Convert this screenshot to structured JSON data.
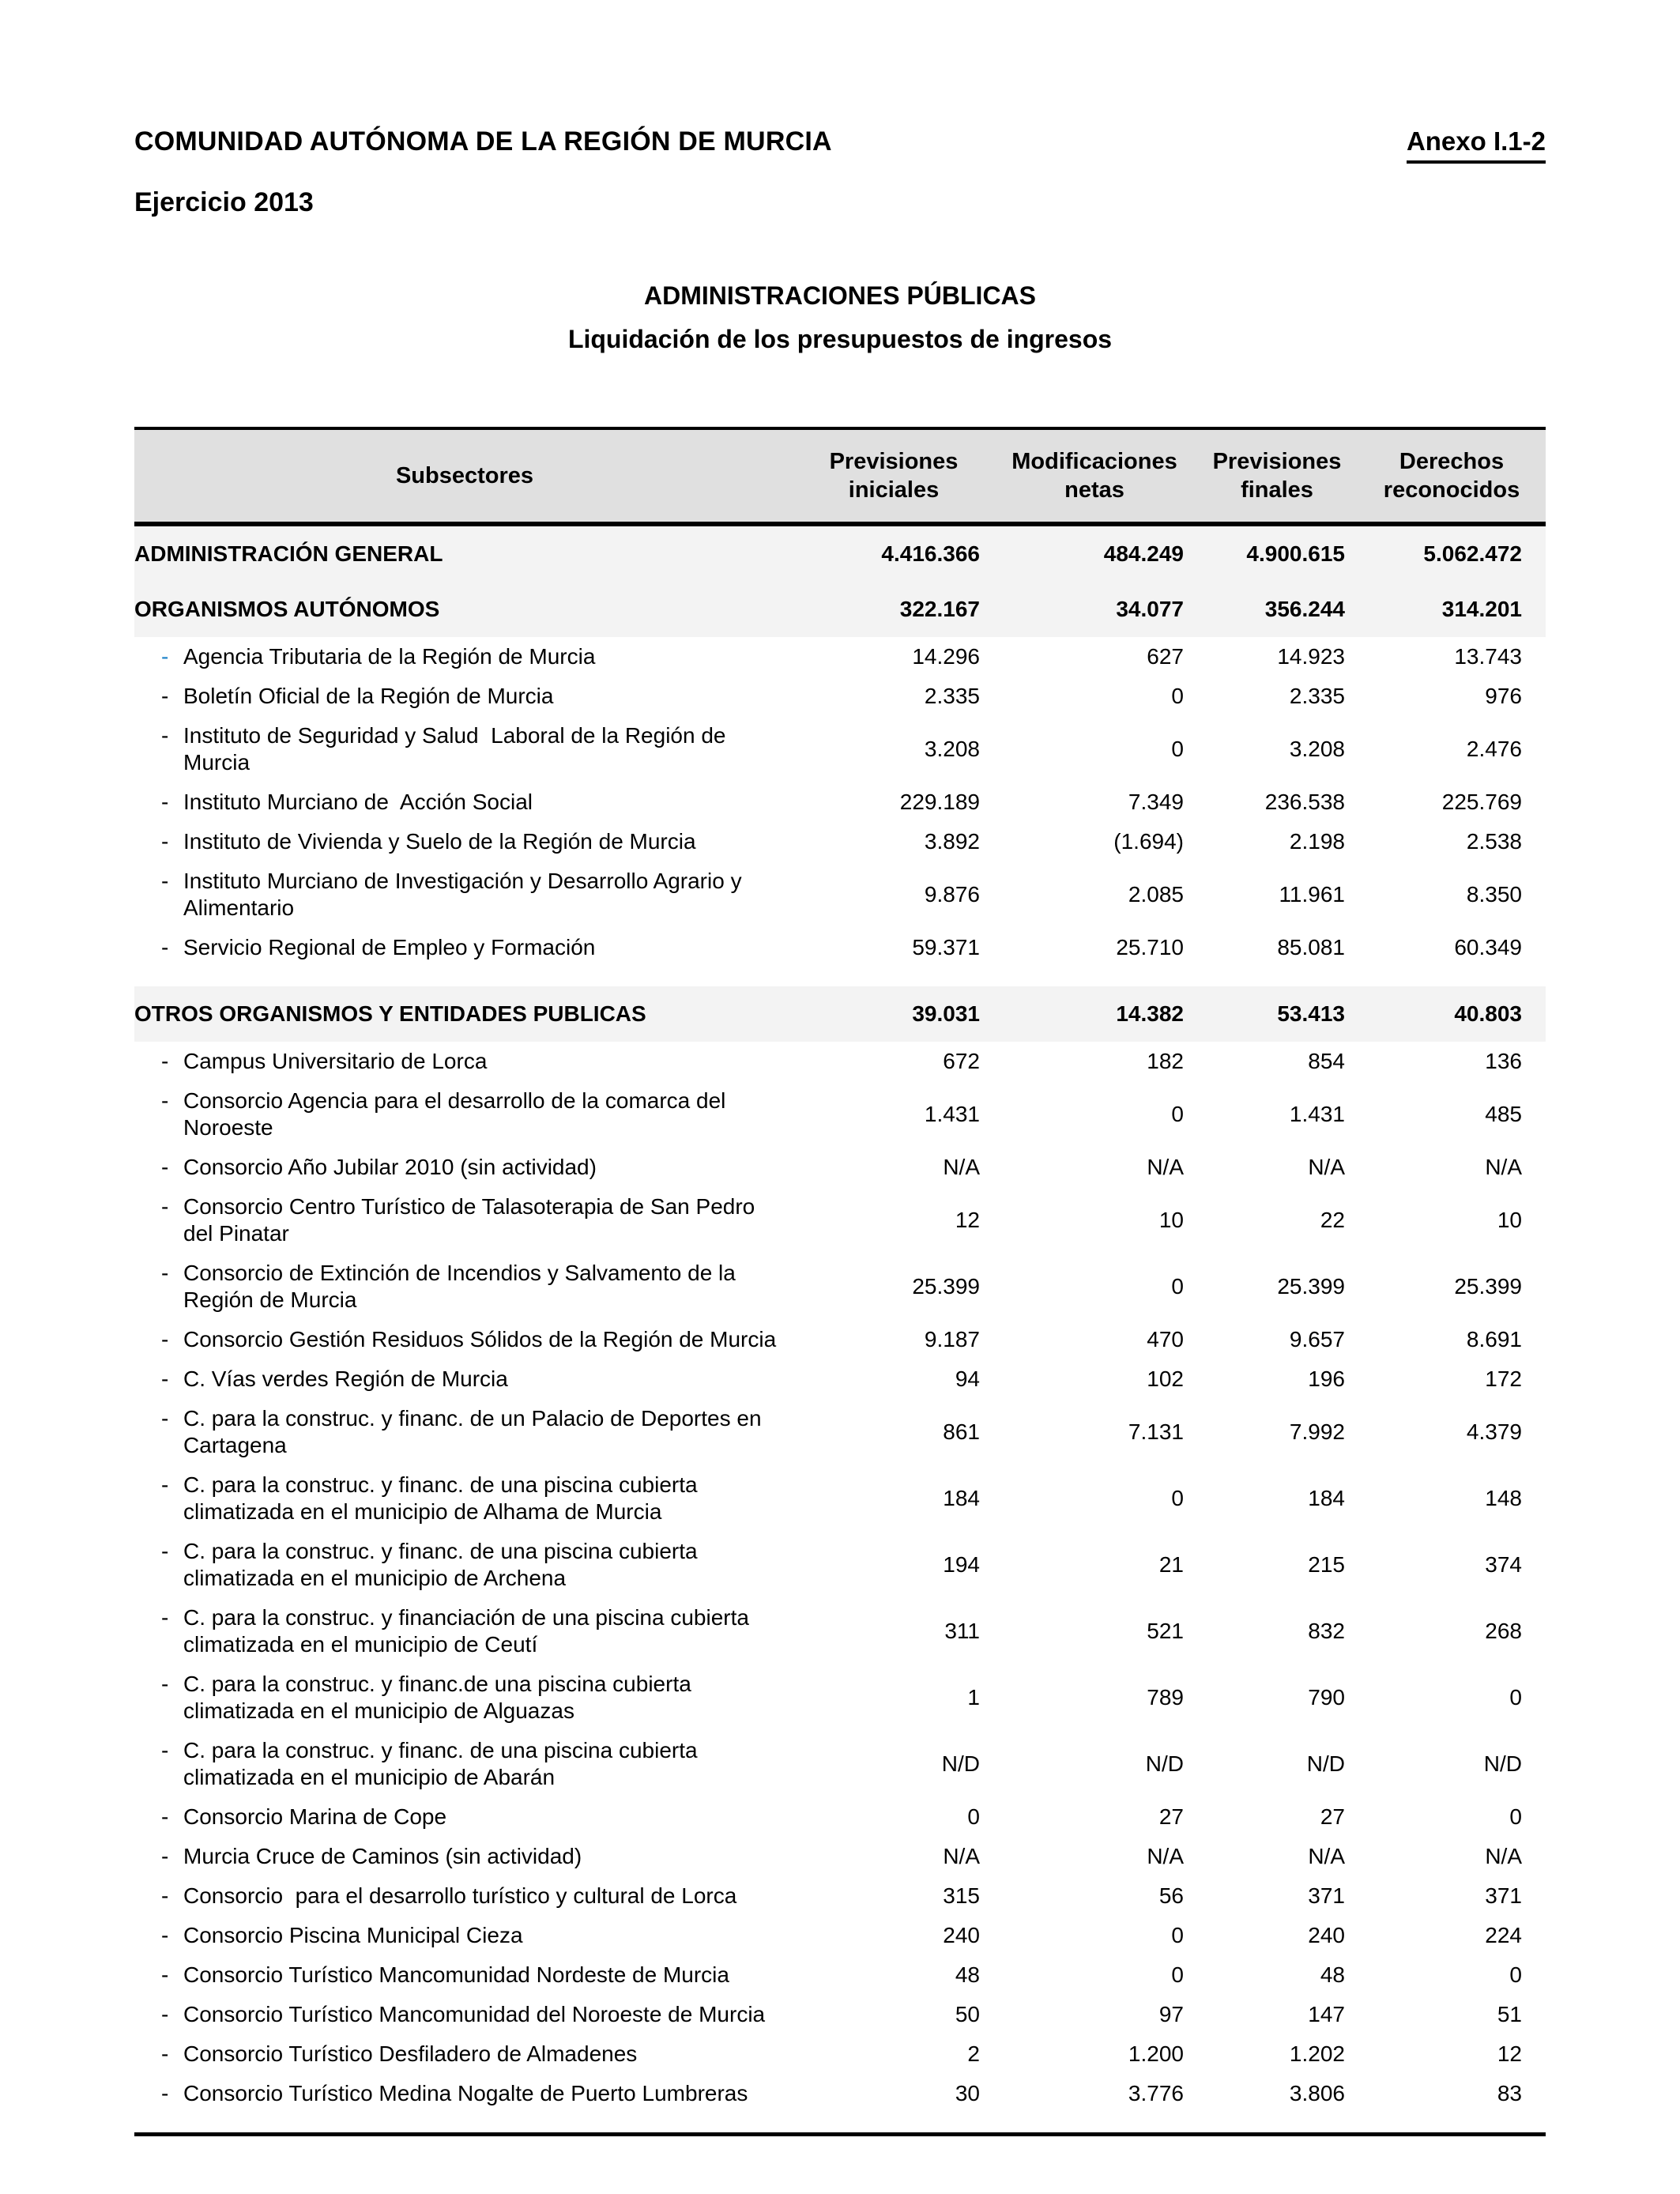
{
  "colors": {
    "header_bg": "#E0E0E0",
    "section_bg": "#F3F3F3",
    "accent_blue": "#1E82C8",
    "border_black": "#000000"
  },
  "header": {
    "org": "COMUNIDAD AUTÓNOMA DE LA REGIÓN DE MURCIA",
    "annex": "Anexo I.1-2",
    "exercise": "Ejercicio 2013",
    "title": "ADMINISTRACIONES PÚBLICAS",
    "subtitle": "Liquidación de los presupuestos de ingresos"
  },
  "table": {
    "columns": [
      "Subsectores",
      "Previsiones iniciales",
      "Modificaciones netas",
      "Previsiones finales",
      "Derechos reconocidos"
    ],
    "sections": [
      {
        "title": "ADMINISTRACIÓN GENERAL",
        "values": [
          "4.416.366",
          "484.249",
          "4.900.615",
          "5.062.472"
        ],
        "gap_before": false,
        "items": []
      },
      {
        "title": "ORGANISMOS AUTÓNOMOS",
        "values": [
          "322.167",
          "34.077",
          "356.244",
          "314.201"
        ],
        "gap_before": false,
        "items": [
          {
            "label": "Agencia Tributaria de la Región de Murcia",
            "values": [
              "14.296",
              "627",
              "14.923",
              "13.743"
            ],
            "dash_blue": true
          },
          {
            "label": "Boletín Oficial de la Región de Murcia",
            "values": [
              "2.335",
              "0",
              "2.335",
              "976"
            ]
          },
          {
            "label": "Instituto de Seguridad y Salud  Laboral de la Región de Murcia",
            "values": [
              "3.208",
              "0",
              "3.208",
              "2.476"
            ]
          },
          {
            "label": "Instituto Murciano de  Acción Social",
            "values": [
              "229.189",
              "7.349",
              "236.538",
              "225.769"
            ]
          },
          {
            "label": "Instituto de Vivienda y Suelo de la Región de Murcia",
            "values": [
              "3.892",
              "(1.694)",
              "2.198",
              "2.538"
            ]
          },
          {
            "label": "Instituto Murciano de Investigación y Desarrollo Agrario y Alimentario",
            "values": [
              "9.876",
              "2.085",
              "11.961",
              "8.350"
            ]
          },
          {
            "label": "Servicio Regional de Empleo y Formación",
            "values": [
              "59.371",
              "25.710",
              "85.081",
              "60.349"
            ]
          }
        ]
      },
      {
        "title": "OTROS ORGANISMOS Y ENTIDADES PUBLICAS",
        "values": [
          "39.031",
          "14.382",
          "53.413",
          "40.803"
        ],
        "gap_before": true,
        "items": [
          {
            "label": "Campus Universitario de Lorca",
            "values": [
              "672",
              "182",
              "854",
              "136"
            ]
          },
          {
            "label": "Consorcio Agencia para el desarrollo de la comarca del Noroeste",
            "values": [
              "1.431",
              "0",
              "1.431",
              "485"
            ]
          },
          {
            "label": "Consorcio Año Jubilar 2010 (sin actividad)",
            "values": [
              "N/A",
              "N/A",
              "N/A",
              "N/A"
            ]
          },
          {
            "label": "Consorcio Centro Turístico de Talasoterapia de San Pedro del Pinatar",
            "values": [
              "12",
              "10",
              "22",
              "10"
            ]
          },
          {
            "label": "Consorcio de Extinción de Incendios y Salvamento de la Región de Murcia",
            "values": [
              "25.399",
              "0",
              "25.399",
              "25.399"
            ]
          },
          {
            "label": "Consorcio Gestión Residuos Sólidos de la Región de Murcia",
            "values": [
              "9.187",
              "470",
              "9.657",
              "8.691"
            ]
          },
          {
            "label": "C. Vías verdes Región de Murcia",
            "values": [
              "94",
              "102",
              "196",
              "172"
            ]
          },
          {
            "label": "C. para la construc. y financ. de un Palacio de Deportes en Cartagena",
            "values": [
              "861",
              "7.131",
              "7.992",
              "4.379"
            ]
          },
          {
            "label": "C. para la construc. y financ. de una piscina cubierta climatizada en el municipio de Alhama de Murcia",
            "values": [
              "184",
              "0",
              "184",
              "148"
            ]
          },
          {
            "label": "C. para la construc. y financ. de una piscina cubierta climatizada en el municipio de Archena",
            "values": [
              "194",
              "21",
              "215",
              "374"
            ]
          },
          {
            "label": "C. para la construc. y financiación de una piscina cubierta climatizada en el municipio de Ceutí",
            "values": [
              "311",
              "521",
              "832",
              "268"
            ]
          },
          {
            "label": "C. para la construc. y financ.de una piscina cubierta climatizada en el municipio de Alguazas",
            "values": [
              "1",
              "789",
              "790",
              "0"
            ]
          },
          {
            "label": "C. para la construc. y financ. de una piscina cubierta climatizada en el municipio de Abarán",
            "values": [
              "N/D",
              "N/D",
              "N/D",
              "N/D"
            ]
          },
          {
            "label": "Consorcio Marina de Cope",
            "values": [
              "0",
              "27",
              "27",
              "0"
            ]
          },
          {
            "label": "Murcia Cruce de Caminos (sin actividad)",
            "values": [
              "N/A",
              "N/A",
              "N/A",
              "N/A"
            ]
          },
          {
            "label": "Consorcio  para el desarrollo turístico y cultural de Lorca",
            "values": [
              "315",
              "56",
              "371",
              "371"
            ]
          },
          {
            "label": "Consorcio Piscina Municipal Cieza",
            "values": [
              "240",
              "0",
              "240",
              "224"
            ]
          },
          {
            "label": "Consorcio Turístico Mancomunidad Nordeste de Murcia",
            "values": [
              "48",
              "0",
              "48",
              "0"
            ]
          },
          {
            "label": "Consorcio Turístico Mancomunidad del Noroeste de Murcia",
            "values": [
              "50",
              "97",
              "147",
              "51"
            ]
          },
          {
            "label": "Consorcio Turístico Desfiladero de Almadenes",
            "values": [
              "2",
              "1.200",
              "1.202",
              "12"
            ]
          },
          {
            "label": "Consorcio Turístico Medina Nogalte de Puerto Lumbreras",
            "values": [
              "30",
              "3.776",
              "3.806",
              "83"
            ]
          }
        ]
      }
    ]
  }
}
